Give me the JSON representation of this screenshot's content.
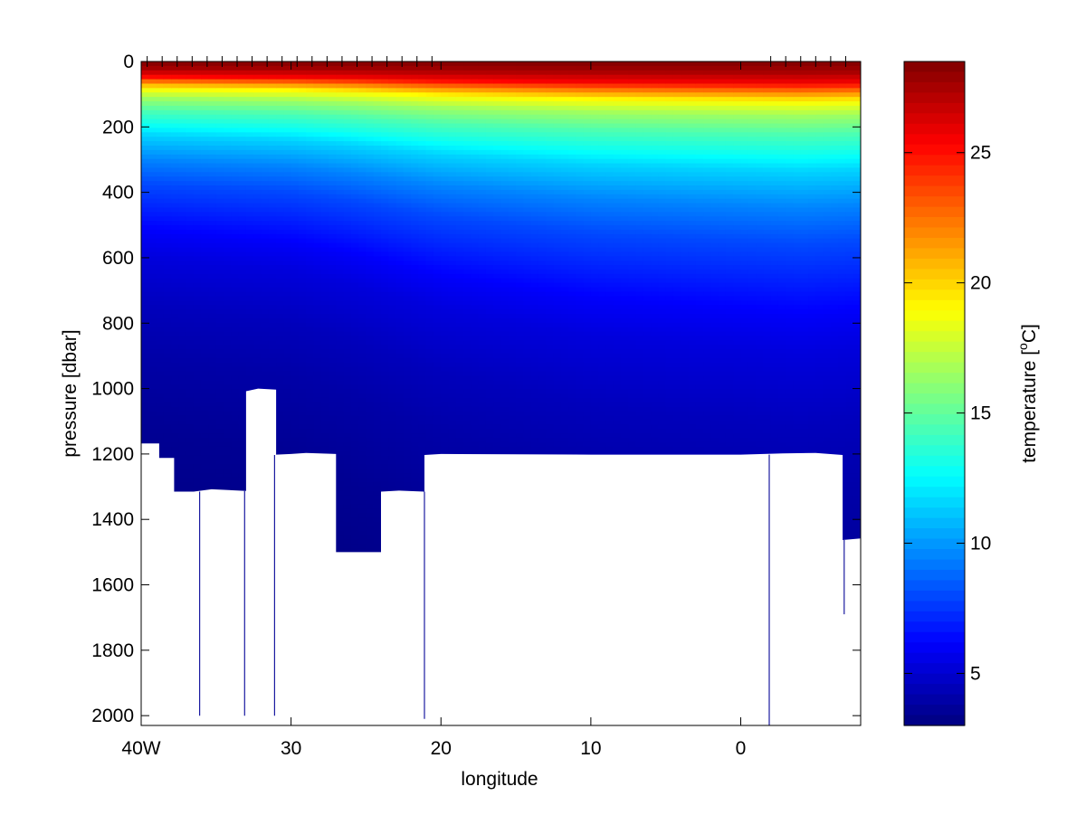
{
  "chart_data": {
    "type": "heatmap",
    "title": "",
    "xlabel": "longitude",
    "ylabel": "pressure [dbar]",
    "x_ticks": [
      {
        "value": 40,
        "label": "40W"
      },
      {
        "value": 30,
        "label": "30"
      },
      {
        "value": 20,
        "label": "20"
      },
      {
        "value": 10,
        "label": "10"
      },
      {
        "value": 0,
        "label": "0"
      }
    ],
    "y_ticks": [
      {
        "value": 0,
        "label": "0"
      },
      {
        "value": 200,
        "label": "200"
      },
      {
        "value": 400,
        "label": "400"
      },
      {
        "value": 600,
        "label": "600"
      },
      {
        "value": 800,
        "label": "800"
      },
      {
        "value": 1000,
        "label": "1000"
      },
      {
        "value": 1200,
        "label": "1200"
      },
      {
        "value": 1400,
        "label": "1400"
      },
      {
        "value": 1600,
        "label": "1600"
      },
      {
        "value": 1800,
        "label": "1800"
      },
      {
        "value": 2000,
        "label": "2000"
      }
    ],
    "xlim": [
      40,
      -8
    ],
    "ylim": [
      0,
      2030
    ],
    "y_reversed": true,
    "colorbar": {
      "label_pre": "temperature [",
      "label_sup": "o",
      "label_post": "C]",
      "range": [
        3,
        28.5
      ],
      "ticks": [
        {
          "value": 5,
          "label": "5"
        },
        {
          "value": 10,
          "label": "10"
        },
        {
          "value": 15,
          "label": "15"
        },
        {
          "value": 20,
          "label": "20"
        },
        {
          "value": 25,
          "label": "25"
        }
      ],
      "colormap": "jet"
    },
    "station_longitudes": [
      39.6,
      38.6,
      37.6,
      36.6,
      35.6,
      34.6,
      33.6,
      32.6,
      31.6,
      30.6,
      29.6,
      28.6,
      27.6,
      26.6,
      25.6,
      24.6,
      23.6,
      22.6,
      21.6,
      20.6,
      -2,
      -3,
      -4,
      -5,
      -6,
      -7
    ],
    "bottom_profile": [
      {
        "lon": 40.0,
        "depth": 1168
      },
      {
        "lon": 38.8,
        "depth": 1168
      },
      {
        "lon": 38.8,
        "depth": 1212
      },
      {
        "lon": 37.8,
        "depth": 1212
      },
      {
        "lon": 37.8,
        "depth": 1315
      },
      {
        "lon": 36.5,
        "depth": 1315
      },
      {
        "lon": 35.3,
        "depth": 1308
      },
      {
        "lon": 33.0,
        "depth": 1313
      },
      {
        "lon": 33.0,
        "depth": 1008
      },
      {
        "lon": 32.2,
        "depth": 1000
      },
      {
        "lon": 31.0,
        "depth": 1003
      },
      {
        "lon": 31.0,
        "depth": 1202
      },
      {
        "lon": 30.0,
        "depth": 1200
      },
      {
        "lon": 29.0,
        "depth": 1197
      },
      {
        "lon": 27.0,
        "depth": 1200
      },
      {
        "lon": 27.0,
        "depth": 1500
      },
      {
        "lon": 24.0,
        "depth": 1500
      },
      {
        "lon": 24.0,
        "depth": 1315
      },
      {
        "lon": 22.8,
        "depth": 1312
      },
      {
        "lon": 21.1,
        "depth": 1315
      },
      {
        "lon": 21.1,
        "depth": 1203
      },
      {
        "lon": 20.0,
        "depth": 1200
      },
      {
        "lon": 15.0,
        "depth": 1201
      },
      {
        "lon": 10.0,
        "depth": 1202
      },
      {
        "lon": 0.0,
        "depth": 1202
      },
      {
        "lon": -2.8,
        "depth": 1198
      },
      {
        "lon": -5.0,
        "depth": 1197
      },
      {
        "lon": -6.8,
        "depth": 1203
      },
      {
        "lon": -6.8,
        "depth": 1463
      },
      {
        "lon": -8.0,
        "depth": 1458
      }
    ],
    "cast_lines": [
      {
        "lon": 36.1,
        "top": 1315,
        "bottom": 2000
      },
      {
        "lon": 33.1,
        "top": 1313,
        "bottom": 2000
      },
      {
        "lon": 31.1,
        "top": 1203,
        "bottom": 2000
      },
      {
        "lon": 21.1,
        "top": 1315,
        "bottom": 2010
      },
      {
        "lon": -1.9,
        "top": 1202,
        "bottom": 2030
      },
      {
        "lon": -6.9,
        "top": 1463,
        "bottom": 1690
      }
    ],
    "temperature_profile": [
      {
        "pressure": 0,
        "temp": 28.5
      },
      {
        "pressure": 30,
        "temp": 27.5
      },
      {
        "pressure": 60,
        "temp": 25.5
      },
      {
        "pressure": 85,
        "temp": 22.0
      },
      {
        "pressure": 110,
        "temp": 19.0
      },
      {
        "pressure": 150,
        "temp": 16.5
      },
      {
        "pressure": 200,
        "temp": 14.5
      },
      {
        "pressure": 260,
        "temp": 12.8
      },
      {
        "pressure": 300,
        "temp": 11.5
      },
      {
        "pressure": 400,
        "temp": 9.5
      },
      {
        "pressure": 500,
        "temp": 8.0
      },
      {
        "pressure": 600,
        "temp": 7.0
      },
      {
        "pressure": 700,
        "temp": 6.0
      },
      {
        "pressure": 800,
        "temp": 5.3
      },
      {
        "pressure": 1000,
        "temp": 4.5
      },
      {
        "pressure": 1200,
        "temp": 4.0
      },
      {
        "pressure": 1500,
        "temp": 3.5
      },
      {
        "pressure": 2030,
        "temp": 3.0
      }
    ],
    "regional_depth_scale": [
      {
        "lon": 40.0,
        "scale": 0.75
      },
      {
        "lon": 34.0,
        "scale": 0.78
      },
      {
        "lon": 30.0,
        "scale": 0.8
      },
      {
        "lon": 26.0,
        "scale": 0.85
      },
      {
        "lon": 20.0,
        "scale": 0.95
      },
      {
        "lon": 10.0,
        "scale": 1.05
      },
      {
        "lon": 0.0,
        "scale": 1.1
      },
      {
        "lon": -4.0,
        "scale": 1.12
      },
      {
        "lon": -8.0,
        "scale": 1.1
      }
    ]
  }
}
